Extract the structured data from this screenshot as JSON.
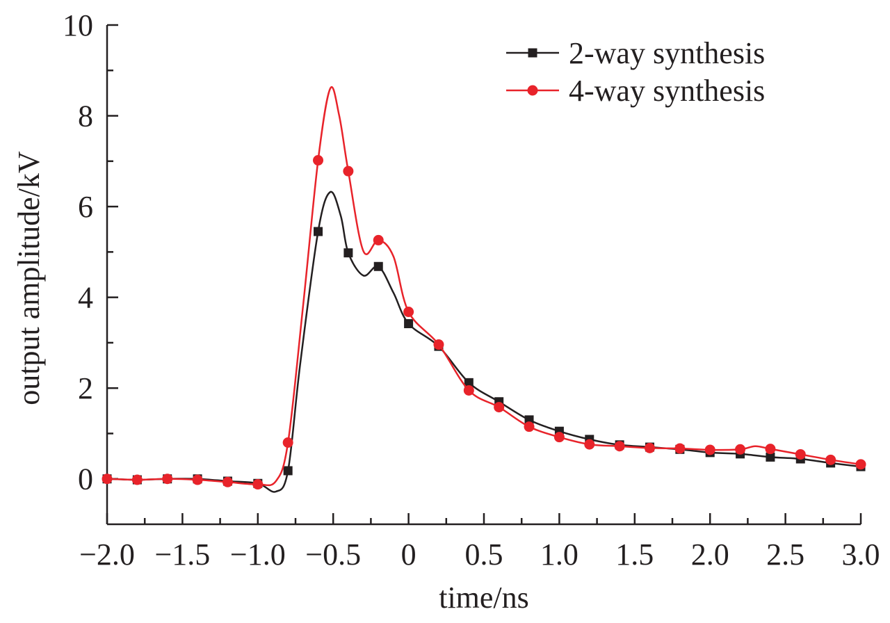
{
  "chart_data": {
    "type": "line",
    "title": "",
    "xlabel": "time/ns",
    "ylabel": "output amplitude/kV",
    "xlim": [
      -2.0,
      3.0
    ],
    "ylim": [
      -1.0,
      10.0
    ],
    "x_ticks": [
      -2.0,
      -1.5,
      -1.0,
      -0.5,
      0,
      0.5,
      1.0,
      1.5,
      2.0,
      2.5,
      3.0
    ],
    "x_tick_labels": [
      "−2.0",
      "−1.5",
      "−1.0",
      "−0.5",
      "0",
      "0.5",
      "1.0",
      "1.5",
      "2.0",
      "2.5",
      "3.0"
    ],
    "y_ticks": [
      0,
      2,
      4,
      6,
      8,
      10
    ],
    "y_tick_labels": [
      "0",
      "2",
      "4",
      "6",
      "8",
      "10"
    ],
    "grid": false,
    "legend_position": "top-right",
    "series": [
      {
        "name": "2-way synthesis",
        "color": "#231f20",
        "marker": "square",
        "markers": [
          {
            "x": -2.0,
            "y": 0.0
          },
          {
            "x": -1.8,
            "y": -0.02
          },
          {
            "x": -1.6,
            "y": 0.0
          },
          {
            "x": -1.4,
            "y": 0.0
          },
          {
            "x": -1.2,
            "y": -0.05
          },
          {
            "x": -1.0,
            "y": -0.1
          },
          {
            "x": -0.8,
            "y": 0.18
          },
          {
            "x": -0.6,
            "y": 5.45
          },
          {
            "x": -0.4,
            "y": 4.98
          },
          {
            "x": -0.2,
            "y": 4.68
          },
          {
            "x": 0.0,
            "y": 3.42
          },
          {
            "x": 0.2,
            "y": 2.92
          },
          {
            "x": 0.4,
            "y": 2.12
          },
          {
            "x": 0.6,
            "y": 1.7
          },
          {
            "x": 0.8,
            "y": 1.3
          },
          {
            "x": 1.0,
            "y": 1.05
          },
          {
            "x": 1.2,
            "y": 0.87
          },
          {
            "x": 1.4,
            "y": 0.75
          },
          {
            "x": 1.6,
            "y": 0.7
          },
          {
            "x": 1.8,
            "y": 0.65
          },
          {
            "x": 2.0,
            "y": 0.58
          },
          {
            "x": 2.2,
            "y": 0.55
          },
          {
            "x": 2.4,
            "y": 0.48
          },
          {
            "x": 2.6,
            "y": 0.44
          },
          {
            "x": 2.8,
            "y": 0.35
          },
          {
            "x": 3.0,
            "y": 0.27
          }
        ],
        "curve": [
          {
            "x": -2.0,
            "y": 0.0
          },
          {
            "x": -1.8,
            "y": -0.02
          },
          {
            "x": -1.6,
            "y": 0.0
          },
          {
            "x": -1.4,
            "y": 0.0
          },
          {
            "x": -1.2,
            "y": -0.05
          },
          {
            "x": -1.0,
            "y": -0.1
          },
          {
            "x": -0.88,
            "y": -0.28
          },
          {
            "x": -0.8,
            "y": 0.18
          },
          {
            "x": -0.72,
            "y": 2.5
          },
          {
            "x": -0.6,
            "y": 5.45
          },
          {
            "x": -0.52,
            "y": 6.32
          },
          {
            "x": -0.45,
            "y": 5.8
          },
          {
            "x": -0.4,
            "y": 4.98
          },
          {
            "x": -0.3,
            "y": 4.48
          },
          {
            "x": -0.2,
            "y": 4.68
          },
          {
            "x": -0.1,
            "y": 4.1
          },
          {
            "x": 0.0,
            "y": 3.42
          },
          {
            "x": 0.2,
            "y": 2.92
          },
          {
            "x": 0.4,
            "y": 2.12
          },
          {
            "x": 0.6,
            "y": 1.7
          },
          {
            "x": 0.8,
            "y": 1.3
          },
          {
            "x": 1.0,
            "y": 1.05
          },
          {
            "x": 1.2,
            "y": 0.87
          },
          {
            "x": 1.4,
            "y": 0.75
          },
          {
            "x": 1.6,
            "y": 0.7
          },
          {
            "x": 1.8,
            "y": 0.65
          },
          {
            "x": 2.0,
            "y": 0.58
          },
          {
            "x": 2.2,
            "y": 0.55
          },
          {
            "x": 2.4,
            "y": 0.48
          },
          {
            "x": 2.6,
            "y": 0.44
          },
          {
            "x": 2.8,
            "y": 0.35
          },
          {
            "x": 3.0,
            "y": 0.27
          }
        ]
      },
      {
        "name": "4-way synthesis",
        "color": "#e8232a",
        "marker": "circle",
        "markers": [
          {
            "x": -2.0,
            "y": 0.0
          },
          {
            "x": -1.8,
            "y": -0.02
          },
          {
            "x": -1.6,
            "y": 0.0
          },
          {
            "x": -1.4,
            "y": -0.02
          },
          {
            "x": -1.2,
            "y": -0.07
          },
          {
            "x": -1.0,
            "y": -0.12
          },
          {
            "x": -0.8,
            "y": 0.8
          },
          {
            "x": -0.6,
            "y": 7.02
          },
          {
            "x": -0.4,
            "y": 6.78
          },
          {
            "x": -0.2,
            "y": 5.26
          },
          {
            "x": 0.0,
            "y": 3.68
          },
          {
            "x": 0.2,
            "y": 2.96
          },
          {
            "x": 0.4,
            "y": 1.95
          },
          {
            "x": 0.6,
            "y": 1.58
          },
          {
            "x": 0.8,
            "y": 1.15
          },
          {
            "x": 1.0,
            "y": 0.92
          },
          {
            "x": 1.2,
            "y": 0.76
          },
          {
            "x": 1.4,
            "y": 0.72
          },
          {
            "x": 1.6,
            "y": 0.68
          },
          {
            "x": 1.8,
            "y": 0.67
          },
          {
            "x": 2.0,
            "y": 0.64
          },
          {
            "x": 2.2,
            "y": 0.65
          },
          {
            "x": 2.4,
            "y": 0.66
          },
          {
            "x": 2.6,
            "y": 0.54
          },
          {
            "x": 2.8,
            "y": 0.42
          },
          {
            "x": 3.0,
            "y": 0.32
          }
        ],
        "curve": [
          {
            "x": -2.0,
            "y": 0.0
          },
          {
            "x": -1.8,
            "y": -0.02
          },
          {
            "x": -1.6,
            "y": 0.0
          },
          {
            "x": -1.4,
            "y": -0.02
          },
          {
            "x": -1.2,
            "y": -0.07
          },
          {
            "x": -1.0,
            "y": -0.12
          },
          {
            "x": -0.88,
            "y": -0.05
          },
          {
            "x": -0.8,
            "y": 0.8
          },
          {
            "x": -0.7,
            "y": 3.8
          },
          {
            "x": -0.6,
            "y": 7.02
          },
          {
            "x": -0.52,
            "y": 8.6
          },
          {
            "x": -0.46,
            "y": 8.0
          },
          {
            "x": -0.4,
            "y": 6.78
          },
          {
            "x": -0.3,
            "y": 5.02
          },
          {
            "x": -0.2,
            "y": 5.26
          },
          {
            "x": -0.1,
            "y": 4.9
          },
          {
            "x": 0.0,
            "y": 3.68
          },
          {
            "x": 0.2,
            "y": 2.96
          },
          {
            "x": 0.4,
            "y": 1.95
          },
          {
            "x": 0.6,
            "y": 1.58
          },
          {
            "x": 0.8,
            "y": 1.15
          },
          {
            "x": 1.0,
            "y": 0.92
          },
          {
            "x": 1.2,
            "y": 0.76
          },
          {
            "x": 1.4,
            "y": 0.72
          },
          {
            "x": 1.6,
            "y": 0.68
          },
          {
            "x": 1.8,
            "y": 0.67
          },
          {
            "x": 2.0,
            "y": 0.64
          },
          {
            "x": 2.2,
            "y": 0.65
          },
          {
            "x": 2.3,
            "y": 0.72
          },
          {
            "x": 2.4,
            "y": 0.66
          },
          {
            "x": 2.6,
            "y": 0.54
          },
          {
            "x": 2.8,
            "y": 0.42
          },
          {
            "x": 3.0,
            "y": 0.32
          }
        ]
      }
    ]
  }
}
